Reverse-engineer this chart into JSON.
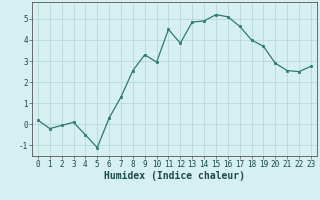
{
  "x": [
    0,
    1,
    2,
    3,
    4,
    5,
    6,
    7,
    8,
    9,
    10,
    11,
    12,
    13,
    14,
    15,
    16,
    17,
    18,
    19,
    20,
    21,
    22,
    23
  ],
  "y": [
    0.2,
    -0.2,
    -0.05,
    0.1,
    -0.5,
    -1.1,
    0.3,
    1.3,
    2.55,
    3.3,
    2.95,
    4.5,
    3.85,
    4.85,
    4.9,
    5.2,
    5.1,
    4.65,
    4.0,
    3.7,
    2.9,
    2.55,
    2.5,
    2.75
  ],
  "xlabel": "Humidex (Indice chaleur)",
  "ylabel": "",
  "xlim": [
    -0.5,
    23.5
  ],
  "ylim": [
    -1.5,
    5.8
  ],
  "yticks": [
    -1,
    0,
    1,
    2,
    3,
    4,
    5
  ],
  "xticks": [
    0,
    1,
    2,
    3,
    4,
    5,
    6,
    7,
    8,
    9,
    10,
    11,
    12,
    13,
    14,
    15,
    16,
    17,
    18,
    19,
    20,
    21,
    22,
    23
  ],
  "line_color": "#2d7a6e",
  "marker_color": "#2d7a6e",
  "bg_color": "#d6eff0",
  "grid_color": "#b8d8d8",
  "tick_fontsize": 5.5,
  "xlabel_fontsize": 7.0
}
